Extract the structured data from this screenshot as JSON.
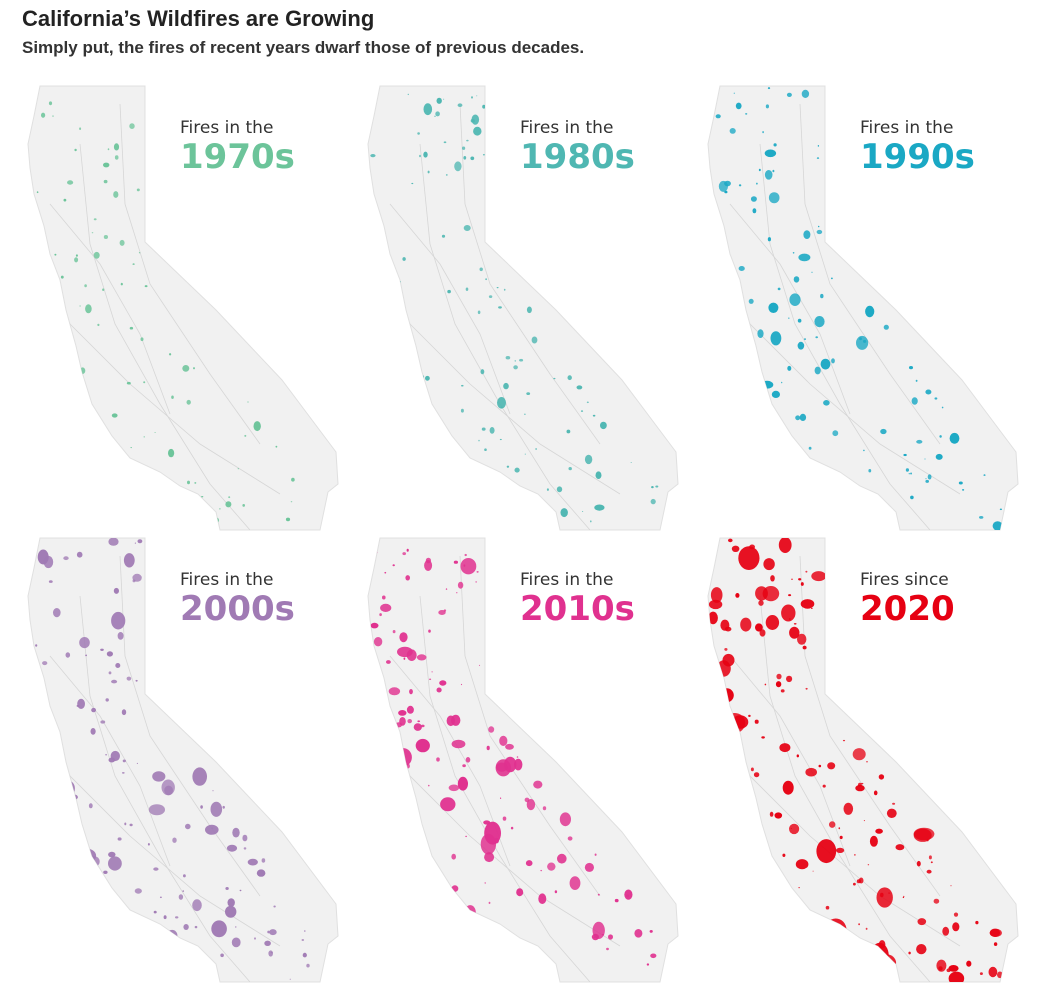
{
  "header": {
    "title": "California’s Wildfires are Growing",
    "subtitle": "Simply put, the fires of recent years dwarf those of previous decades."
  },
  "panels": [
    {
      "lead": "Fires in the",
      "decade": "1970s",
      "color": "#6cc49a",
      "intensity": 1
    },
    {
      "lead": "Fires in the",
      "decade": "1980s",
      "color": "#4fb7b2",
      "intensity": 2
    },
    {
      "lead": "Fires in the",
      "decade": "1990s",
      "color": "#1aa8c4",
      "intensity": 3
    },
    {
      "lead": "Fires in the",
      "decade": "2000s",
      "color": "#a07ab4",
      "intensity": 4
    },
    {
      "lead": "Fires in the",
      "decade": "2010s",
      "color": "#e0318f",
      "intensity": 5
    },
    {
      "lead": "Fires since",
      "decade": "2020",
      "color": "#e60012",
      "intensity": 6
    }
  ]
}
